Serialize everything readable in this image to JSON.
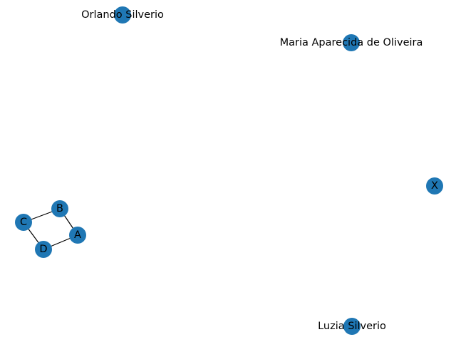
{
  "graph": {
    "node_color": "#1f77b4",
    "edge_color": "#000000",
    "label_color": "#000000",
    "nodes": [
      {
        "id": "orlando",
        "label": "Orlando Silverio"
      },
      {
        "id": "maria",
        "label": "Maria Aparecida de Oliveira"
      },
      {
        "id": "x",
        "label": "X"
      },
      {
        "id": "b",
        "label": "B"
      },
      {
        "id": "c",
        "label": "C"
      },
      {
        "id": "a",
        "label": "A"
      },
      {
        "id": "d",
        "label": "D"
      },
      {
        "id": "luzia",
        "label": "Luzia Silverio"
      }
    ],
    "edges": [
      {
        "source": "b",
        "target": "c"
      },
      {
        "source": "b",
        "target": "a"
      },
      {
        "source": "c",
        "target": "d"
      },
      {
        "source": "d",
        "target": "a"
      }
    ]
  }
}
